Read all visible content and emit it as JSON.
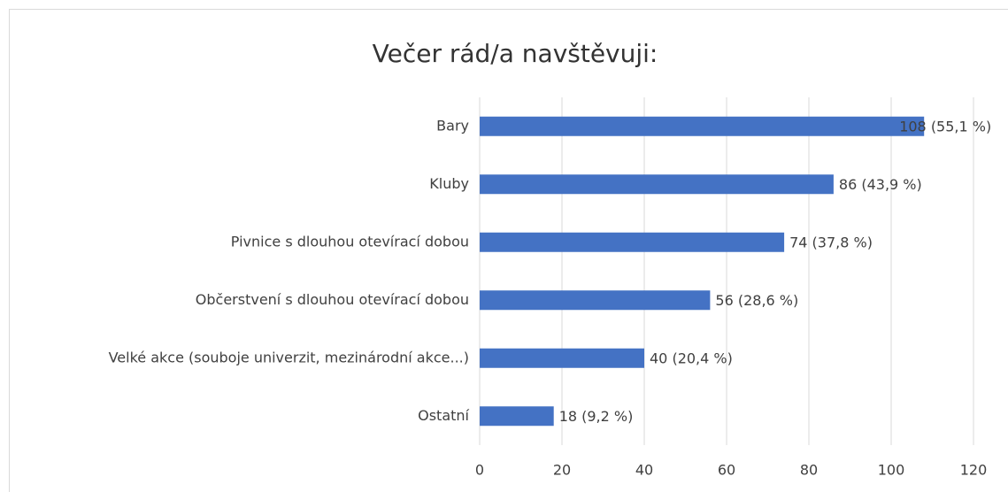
{
  "chart_data": {
    "type": "bar",
    "title": "Večer rád/a navštěvuji:",
    "categories": [
      "Bary",
      "Kluby",
      "Pivnice s dlouhou otevírací dobou",
      "Občerstvení s dlouhou otevírací dobou",
      "Velké akce (souboje univerzit, mezinárodní akce...)",
      "Ostatní"
    ],
    "values": [
      108,
      86,
      74,
      56,
      40,
      18
    ],
    "value_labels": [
      "108 (55,1 %)",
      "86 (43,9 %)",
      "74 (37,8 %)",
      "56 (28,6 %)",
      "40 (20,4 %)",
      "18 (9,2 %)"
    ],
    "color": "#4472c4",
    "xlim": [
      0,
      120
    ],
    "xticks": [
      0,
      20,
      40,
      60,
      80,
      100,
      120
    ],
    "grid": true
  }
}
